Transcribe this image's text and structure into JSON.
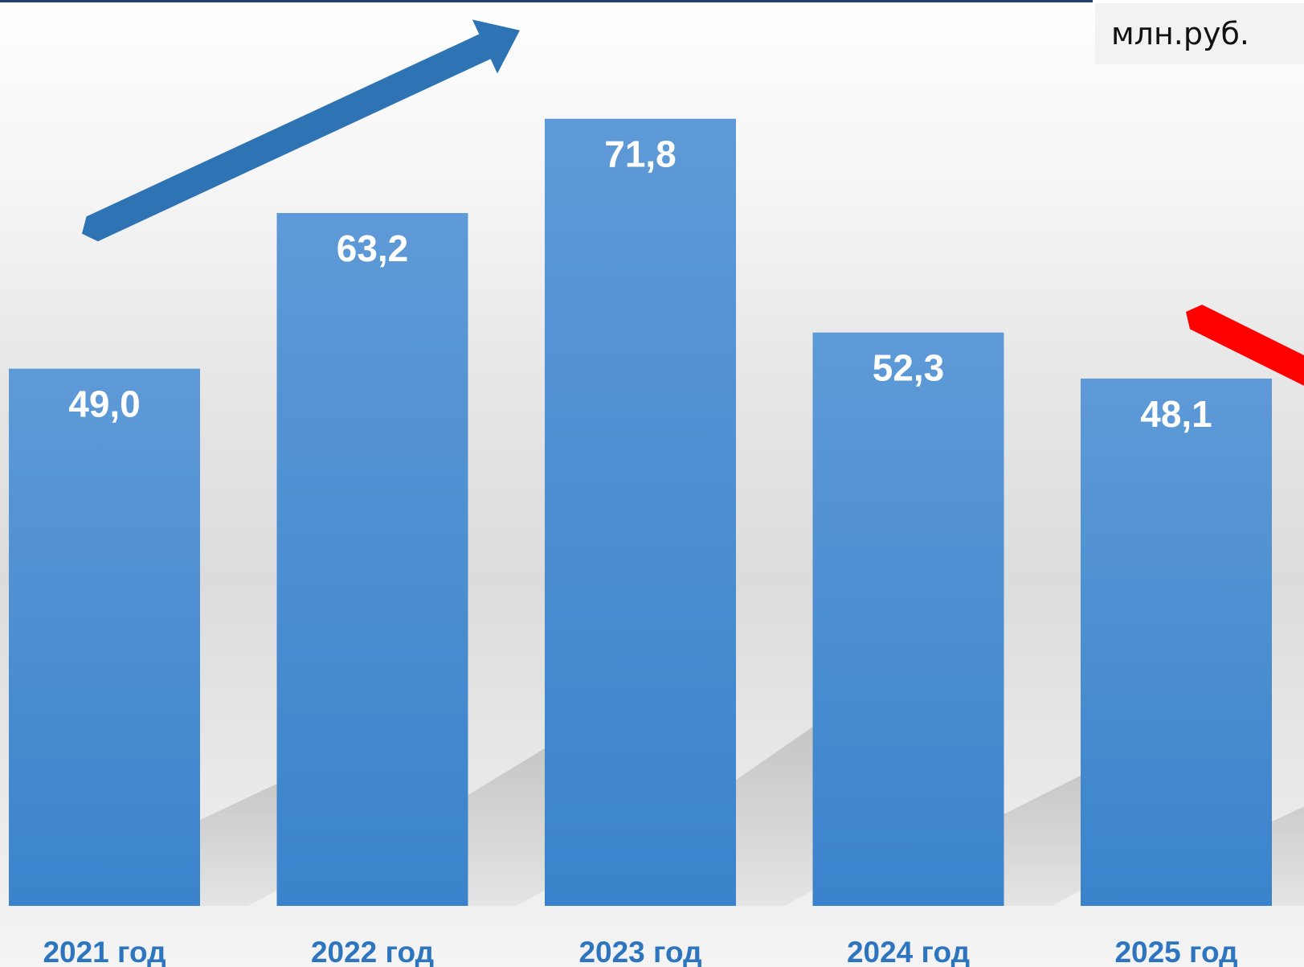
{
  "unit_label": "млн.руб.",
  "colors": {
    "bar_top": "#5e9ad7",
    "bar_bottom": "#3a83cc",
    "value_label": "#ffffff",
    "category_label": "#2e75c0",
    "up_arrow": "#2e74b5",
    "down_arrow": "#ff0000"
  },
  "chart_data": {
    "type": "bar",
    "categories": [
      "2021 год",
      "2022 год",
      "2023 год",
      "2024 год",
      "2025 год"
    ],
    "values": [
      49.0,
      63.2,
      71.8,
      52.3,
      48.1
    ],
    "value_labels": [
      "49,0",
      "63,2",
      "71,8",
      "52,3",
      "48,1"
    ],
    "ylim": [
      0,
      72
    ],
    "grid": false,
    "legend": "none",
    "annotations": [
      {
        "type": "trend-arrow",
        "direction": "up",
        "from_category": "2021 год",
        "to_category": "2023 год"
      },
      {
        "type": "trend-arrow",
        "direction": "down",
        "from_category": "2023 год",
        "to_category": "2025 год"
      }
    ]
  }
}
